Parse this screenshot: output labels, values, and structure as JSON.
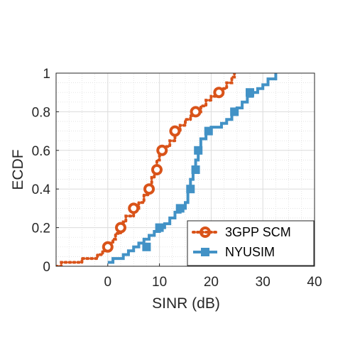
{
  "chart_data": {
    "type": "line",
    "title": "",
    "xlabel": "SINR (dB)",
    "ylabel": "ECDF",
    "xlim": [
      -10,
      40
    ],
    "ylim": [
      0,
      1
    ],
    "xticks": [
      0,
      10,
      20,
      30,
      40
    ],
    "yticks": [
      0,
      0.2,
      0.4,
      0.6,
      0.8,
      1
    ],
    "xtick_labels": [
      "0",
      "10",
      "20",
      "30",
      "40"
    ],
    "ytick_labels": [
      "0",
      "0.2",
      "0.4",
      "0.6",
      "0.8",
      "1"
    ],
    "grid": true,
    "minor_grid": true,
    "legend_position": "bottom-right",
    "series": [
      {
        "name": "3GPP SCM",
        "color": "#D95319",
        "line_style": "dotted",
        "marker": "circle",
        "step_x": [
          -10,
          -9,
          -5,
          -2,
          -1,
          0,
          0.5,
          1,
          1.5,
          2.5,
          3,
          3.5,
          5,
          6,
          7,
          8,
          8.5,
          9,
          9.5,
          10,
          11,
          12,
          13,
          14,
          15,
          16,
          17,
          18,
          19,
          20,
          21,
          22,
          23,
          24,
          24.5
        ],
        "step_y": [
          0.0,
          0.02,
          0.04,
          0.06,
          0.08,
          0.1,
          0.12,
          0.14,
          0.17,
          0.2,
          0.23,
          0.26,
          0.3,
          0.33,
          0.37,
          0.4,
          0.46,
          0.5,
          0.55,
          0.6,
          0.62,
          0.65,
          0.7,
          0.73,
          0.76,
          0.78,
          0.8,
          0.83,
          0.86,
          0.88,
          0.9,
          0.92,
          0.95,
          0.98,
          1.0
        ],
        "marker_x": [
          0,
          2.5,
          5,
          8,
          9.5,
          10.5,
          13,
          17,
          21.5
        ],
        "marker_y": [
          0.1,
          0.2,
          0.3,
          0.4,
          0.5,
          0.6,
          0.7,
          0.8,
          0.9
        ]
      },
      {
        "name": "NYUSIM",
        "color": "#4292C6",
        "line_style": "solid",
        "marker": "square",
        "step_x": [
          0,
          1,
          3,
          4,
          5,
          6,
          7,
          8,
          9,
          10,
          11,
          12,
          13,
          14,
          15,
          15.5,
          16,
          16.5,
          17,
          17.5,
          18,
          19,
          20,
          22,
          23,
          24,
          25,
          26,
          27,
          28,
          29,
          30,
          31,
          32.5
        ],
        "step_y": [
          0.02,
          0.04,
          0.06,
          0.08,
          0.1,
          0.12,
          0.14,
          0.16,
          0.18,
          0.2,
          0.22,
          0.25,
          0.28,
          0.3,
          0.33,
          0.4,
          0.45,
          0.5,
          0.55,
          0.6,
          0.66,
          0.7,
          0.72,
          0.74,
          0.76,
          0.8,
          0.82,
          0.85,
          0.88,
          0.9,
          0.92,
          0.94,
          0.97,
          1.0
        ],
        "marker_x": [
          7.5,
          10,
          14,
          16,
          17,
          17.5,
          19.5,
          24.5,
          27.5
        ],
        "marker_y": [
          0.1,
          0.2,
          0.3,
          0.4,
          0.5,
          0.6,
          0.7,
          0.8,
          0.9
        ]
      }
    ]
  }
}
